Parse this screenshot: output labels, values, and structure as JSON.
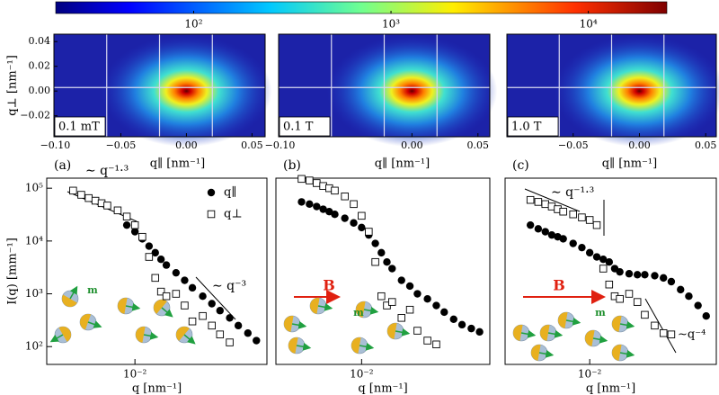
{
  "chart_data": [
    {
      "type": "colorbar",
      "clim": [
        20,
        25000
      ],
      "log": true,
      "ticks": [
        {
          "value": 100,
          "label": "10²"
        },
        {
          "value": 1000,
          "label": "10³"
        },
        {
          "value": 10000,
          "label": "10⁴"
        }
      ]
    },
    {
      "type": "heatmap",
      "annotation": "0.1 mT",
      "xlabel": "q∥ [nm⁻¹]",
      "ylabel": "q⊥ [nm⁻¹]",
      "xlim": [
        -0.101,
        0.06
      ],
      "ylim": [
        -0.037,
        0.046
      ],
      "xticks": [
        {
          "value": -0.1,
          "label": "−0.10"
        },
        {
          "value": -0.05,
          "label": "−0.05"
        },
        {
          "value": 0,
          "label": "0.00"
        },
        {
          "value": 0.05,
          "label": "0.05"
        }
      ],
      "yticks": [
        {
          "value": 0.04,
          "label": "0.04"
        },
        {
          "value": 0.02,
          "label": "0.02"
        },
        {
          "value": 0,
          "label": "0.00"
        },
        {
          "value": -0.02,
          "label": "−0.02"
        }
      ]
    },
    {
      "type": "heatmap",
      "annotation": "0.1 T",
      "xlabel": "q∥ [nm⁻¹]",
      "xlim": [
        -0.101,
        0.059
      ],
      "ylim": [
        -0.037,
        0.046
      ],
      "xticks": [
        {
          "value": -0.1,
          "label": "−0.10"
        },
        {
          "value": 0,
          "label": "0.00"
        },
        {
          "value": 0.05,
          "label": "0.05"
        }
      ]
    },
    {
      "type": "heatmap",
      "annotation": "1.0 T",
      "xlabel": "q∥ [nm⁻¹]",
      "xlim": [
        -0.1,
        0.058
      ],
      "ylim": [
        -0.037,
        0.046
      ],
      "xticks": [
        {
          "value": -0.05,
          "label": "−0.05"
        },
        {
          "value": 0,
          "label": "0.00"
        },
        {
          "value": 0.05,
          "label": "0.05"
        }
      ]
    },
    {
      "type": "scatter",
      "panel": "(a)",
      "log_x": true,
      "log_y": true,
      "xlabel": "q [nm⁻¹]",
      "ylabel": "I(q) [mm⁻¹]",
      "annotations": [
        "∼ q⁻¹·³",
        "∼ q⁻³",
        "m"
      ],
      "xlim": [
        0.0032,
        0.055
      ],
      "ylim": [
        46,
        155000
      ],
      "xticks": [
        {
          "value": 0.01,
          "label": "10⁻²"
        }
      ],
      "yticks": [
        {
          "value": 100,
          "label": "10²"
        },
        {
          "value": 1000,
          "label": "10³"
        },
        {
          "value": 10000,
          "label": "10⁴"
        },
        {
          "value": 100000,
          "label": "10⁵"
        }
      ],
      "x": [
        0.0045,
        0.005,
        0.0055,
        0.006,
        0.0065,
        0.007,
        0.008,
        0.009,
        0.01,
        0.011,
        0.012,
        0.013,
        0.014,
        0.015,
        0.017,
        0.019,
        0.021,
        0.024,
        0.027,
        0.03,
        0.034,
        0.038,
        0.043,
        0.048
      ],
      "series": [
        {
          "name": "q∥",
          "marker": "circle",
          "color": "#000000",
          "values": [
            null,
            null,
            null,
            null,
            null,
            null,
            null,
            20000,
            15000,
            11000,
            8000,
            6000,
            4500,
            3500,
            2500,
            1800,
            1300,
            900,
            650,
            480,
            350,
            250,
            180,
            130
          ]
        },
        {
          "name": "q⊥",
          "marker": "square",
          "color": "#000000",
          "values": [
            90000,
            75000,
            65000,
            58000,
            52000,
            47000,
            38000,
            29000,
            20000,
            12000,
            5000,
            2000,
            1100,
            900,
            1000,
            600,
            300,
            380,
            250,
            170,
            120,
            null,
            null,
            null
          ]
        }
      ]
    },
    {
      "type": "scatter",
      "panel": "(b)",
      "log_x": true,
      "log_y": true,
      "xlabel": "q [nm⁻¹]",
      "annotations": [
        "B",
        "m"
      ],
      "xlim": [
        0.0032,
        0.055
      ],
      "ylim": [
        46,
        155000
      ],
      "xticks": [
        {
          "value": 0.01,
          "label": "10⁻²"
        }
      ],
      "x": [
        0.0045,
        0.005,
        0.0055,
        0.006,
        0.0065,
        0.007,
        0.008,
        0.009,
        0.01,
        0.011,
        0.012,
        0.013,
        0.014,
        0.015,
        0.017,
        0.019,
        0.021,
        0.024,
        0.027,
        0.03,
        0.034,
        0.038,
        0.043,
        0.048
      ],
      "series": [
        {
          "marker": "circle",
          "color": "#000000",
          "values": [
            55000,
            50000,
            45000,
            40000,
            36000,
            32000,
            27000,
            22000,
            18000,
            13000,
            9000,
            6000,
            4000,
            3000,
            1800,
            1400,
            1000,
            800,
            600,
            450,
            330,
            260,
            220,
            190
          ]
        },
        {
          "marker": "square",
          "color": "#000000",
          "values": [
            150000,
            140000,
            125000,
            110000,
            100000,
            90000,
            70000,
            50000,
            30000,
            15000,
            4000,
            900,
            600,
            700,
            350,
            500,
            200,
            130,
            110,
            null,
            null,
            null,
            null,
            null
          ]
        }
      ]
    },
    {
      "type": "scatter",
      "panel": "(c)",
      "log_x": true,
      "log_y": true,
      "xlabel": "q [nm⁻¹]",
      "annotations": [
        "∼ q⁻¹·³",
        "∼q⁻⁴",
        "B",
        "m"
      ],
      "xlim": [
        0.0032,
        0.055
      ],
      "ylim": [
        46,
        155000
      ],
      "xticks": [
        {
          "value": 0.01,
          "label": "10⁻²"
        }
      ],
      "x": [
        0.0045,
        0.005,
        0.0055,
        0.006,
        0.0065,
        0.007,
        0.008,
        0.009,
        0.01,
        0.011,
        0.012,
        0.013,
        0.014,
        0.015,
        0.017,
        0.019,
        0.021,
        0.024,
        0.027,
        0.03,
        0.034,
        0.038,
        0.043,
        0.048
      ],
      "series": [
        {
          "marker": "circle",
          "color": "#000000",
          "values": [
            20000,
            17000,
            15000,
            13000,
            12000,
            11000,
            9000,
            7500,
            6000,
            5000,
            4500,
            4000,
            3000,
            2600,
            2400,
            2300,
            2300,
            2200,
            2000,
            1700,
            1200,
            900,
            600,
            380
          ]
        },
        {
          "marker": "square",
          "color": "#000000",
          "values": [
            60000,
            55000,
            50000,
            45000,
            40000,
            36000,
            32000,
            28000,
            25000,
            20000,
            3000,
            1500,
            900,
            800,
            1000,
            700,
            400,
            250,
            180,
            170,
            null,
            null,
            null,
            null
          ]
        }
      ]
    }
  ]
}
